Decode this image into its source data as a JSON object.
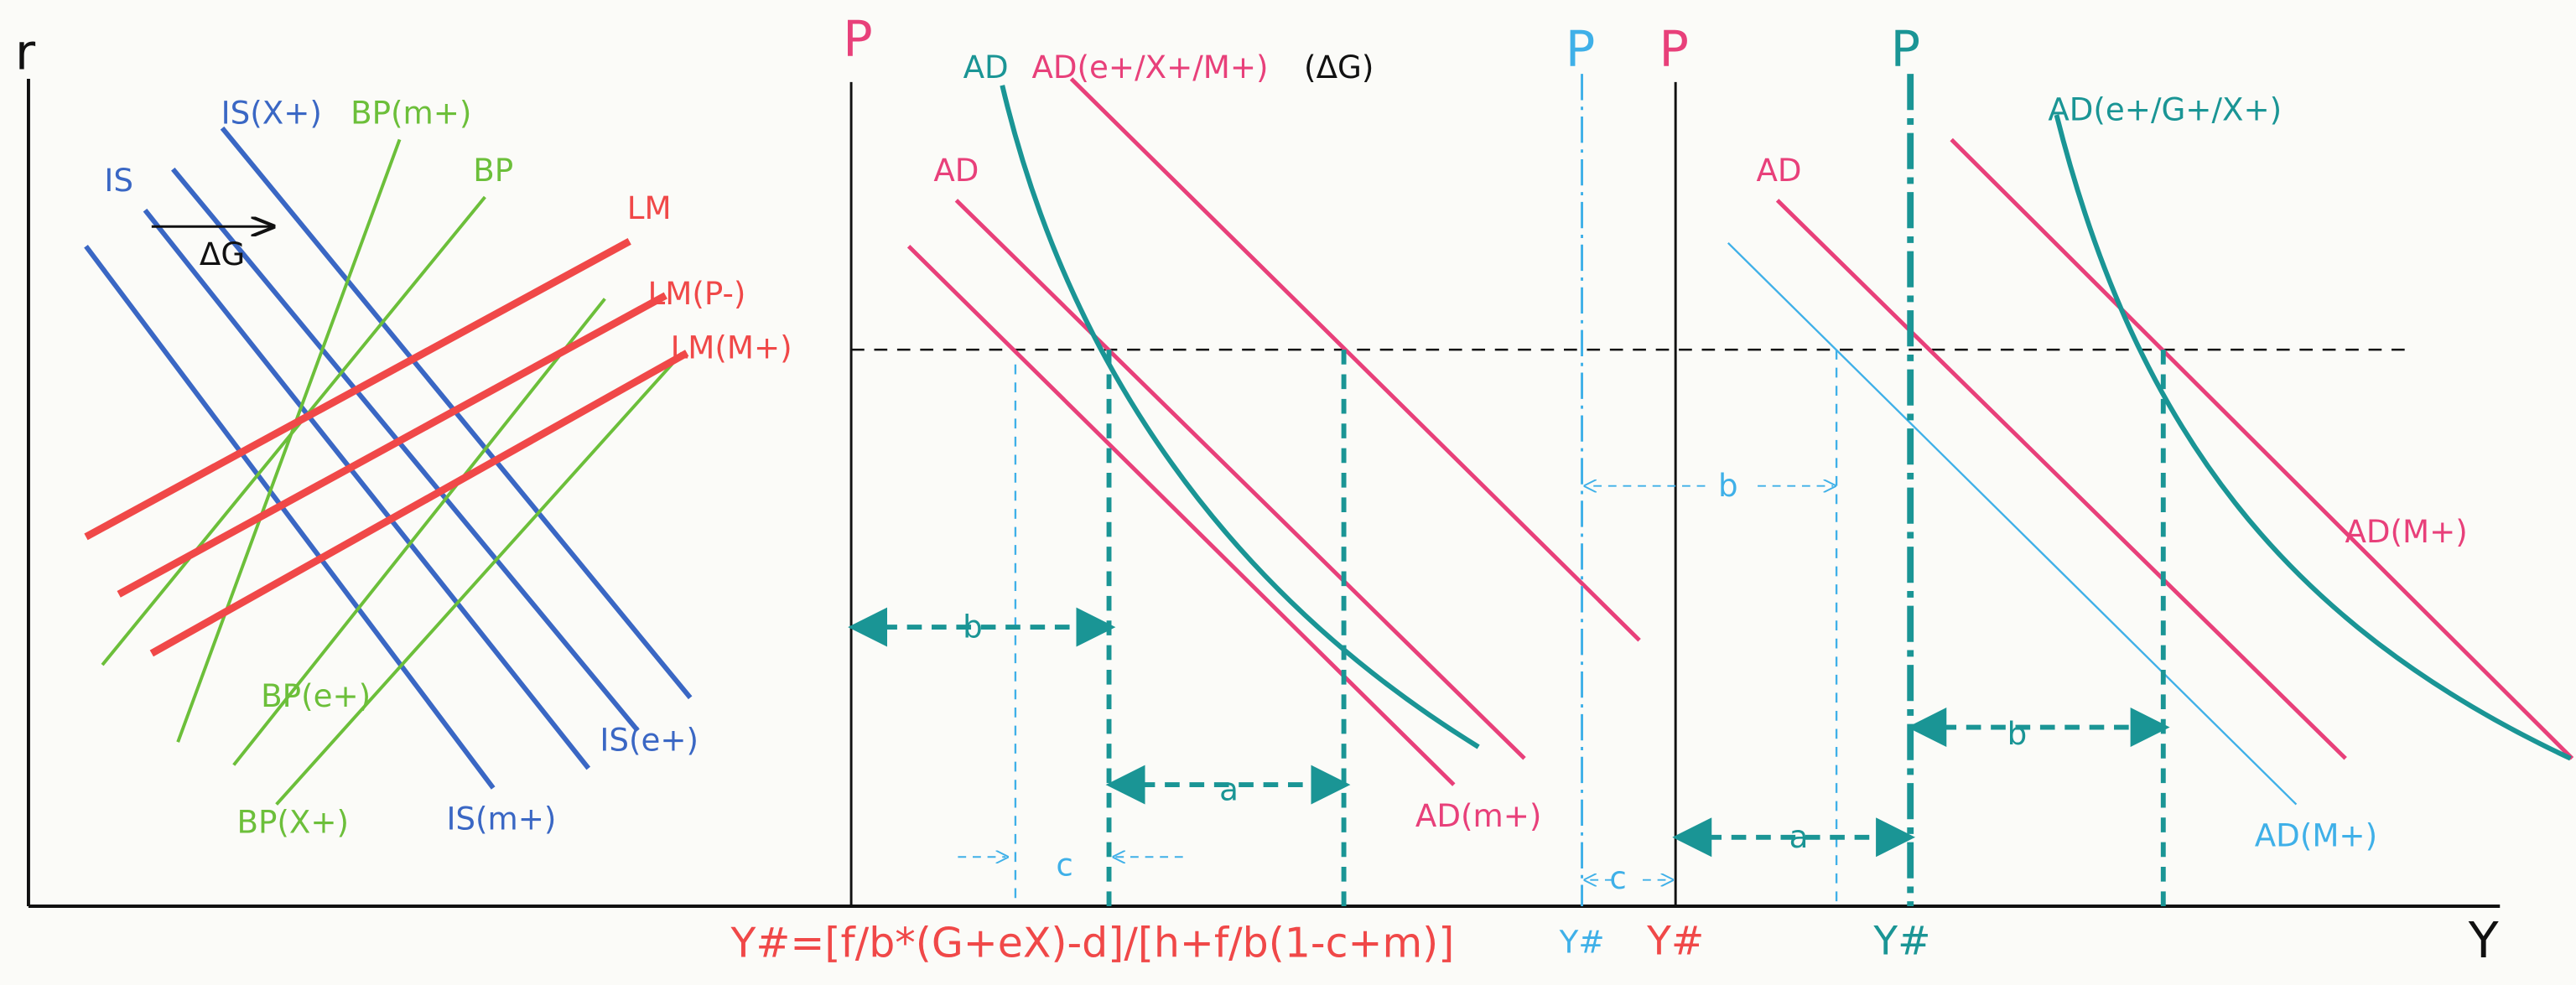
{
  "axes": {
    "r": "r",
    "y": "Y"
  },
  "left_panel": {
    "labels": [
      "IS(X+)",
      "BP(m+)",
      "BP",
      "IS",
      "ΔG",
      "LM",
      "LM(P-)",
      "LM(M+)",
      "BP(e+)",
      "IS(e+)",
      "BP(X+)",
      "IS(m+)"
    ]
  },
  "middle_panel": {
    "labels": [
      "P",
      "AD",
      "AD(e+/X+/M+)",
      "(ΔG)",
      "AD",
      "b",
      "a",
      "c",
      "AD(m+)"
    ]
  },
  "divider": {
    "labels": [
      "P",
      "b",
      "c",
      "Y#"
    ]
  },
  "right_panel": {
    "labels": [
      "P",
      "Y#",
      "P",
      "Y#",
      "AD(e+/G+/X+)",
      "AD",
      "AD(M+)",
      "b",
      "a",
      "AD(M+)"
    ]
  },
  "formula": "Y#=[f/b*(G+eX)-d]/[h+f/b(1-c+m)]"
}
